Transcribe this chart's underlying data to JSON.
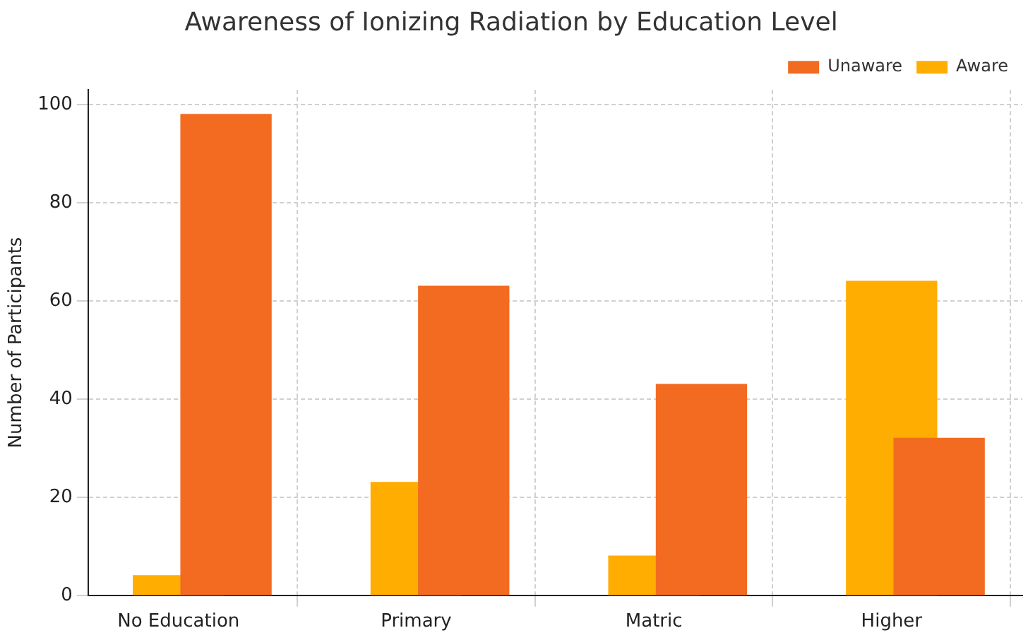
{
  "chart_data": {
    "type": "bar",
    "title": "Awareness of Ionizing Radiation by Education Level",
    "ylabel": "Number of Participants",
    "categories": [
      "No Education",
      "Primary",
      "Matric",
      "Higher"
    ],
    "series": [
      {
        "name": "Aware",
        "color": "#ffad00",
        "values": [
          4,
          23,
          8,
          64
        ]
      },
      {
        "name": "Unaware",
        "color": "#f26b21",
        "values": [
          98,
          63,
          43,
          32
        ]
      }
    ],
    "ylim": [
      0,
      103
    ],
    "yticks": [
      0,
      20,
      40,
      60,
      80,
      100
    ],
    "grid": true,
    "legend": "top right"
  }
}
